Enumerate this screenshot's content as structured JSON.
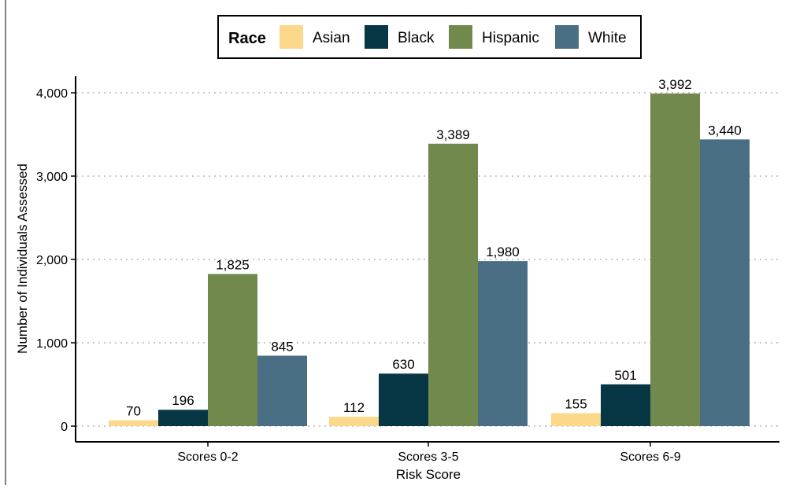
{
  "chart_data": {
    "type": "bar",
    "title": "",
    "xlabel": "Risk Score",
    "ylabel": "Number of Individuals Assessed",
    "categories": [
      "Scores 0-2",
      "Scores 3-5",
      "Scores 6-9"
    ],
    "series": [
      {
        "name": "Asian",
        "color": "#fbd88a",
        "values": [
          70,
          112,
          155
        ],
        "labels": [
          "70",
          "112",
          "155"
        ]
      },
      {
        "name": "Black",
        "color": "#073744",
        "values": [
          196,
          630,
          501
        ],
        "labels": [
          "196",
          "630",
          "501"
        ]
      },
      {
        "name": "Hispanic",
        "color": "#72894e",
        "values": [
          1825,
          3389,
          3992
        ],
        "labels": [
          "1,825",
          "3,389",
          "3,992"
        ]
      },
      {
        "name": "White",
        "color": "#4a6e83",
        "values": [
          845,
          1980,
          3440
        ],
        "labels": [
          "845",
          "1,980",
          "3,440"
        ]
      }
    ],
    "ylim": [
      0,
      4000
    ],
    "yticks": [
      0,
      1000,
      2000,
      3000,
      4000
    ],
    "ytick_labels": [
      "0",
      "1,000",
      "2,000",
      "3,000",
      "4,000"
    ],
    "legend": {
      "title": "Race",
      "position": "top"
    },
    "grid": {
      "horizontal": true,
      "style": "dotted"
    }
  }
}
